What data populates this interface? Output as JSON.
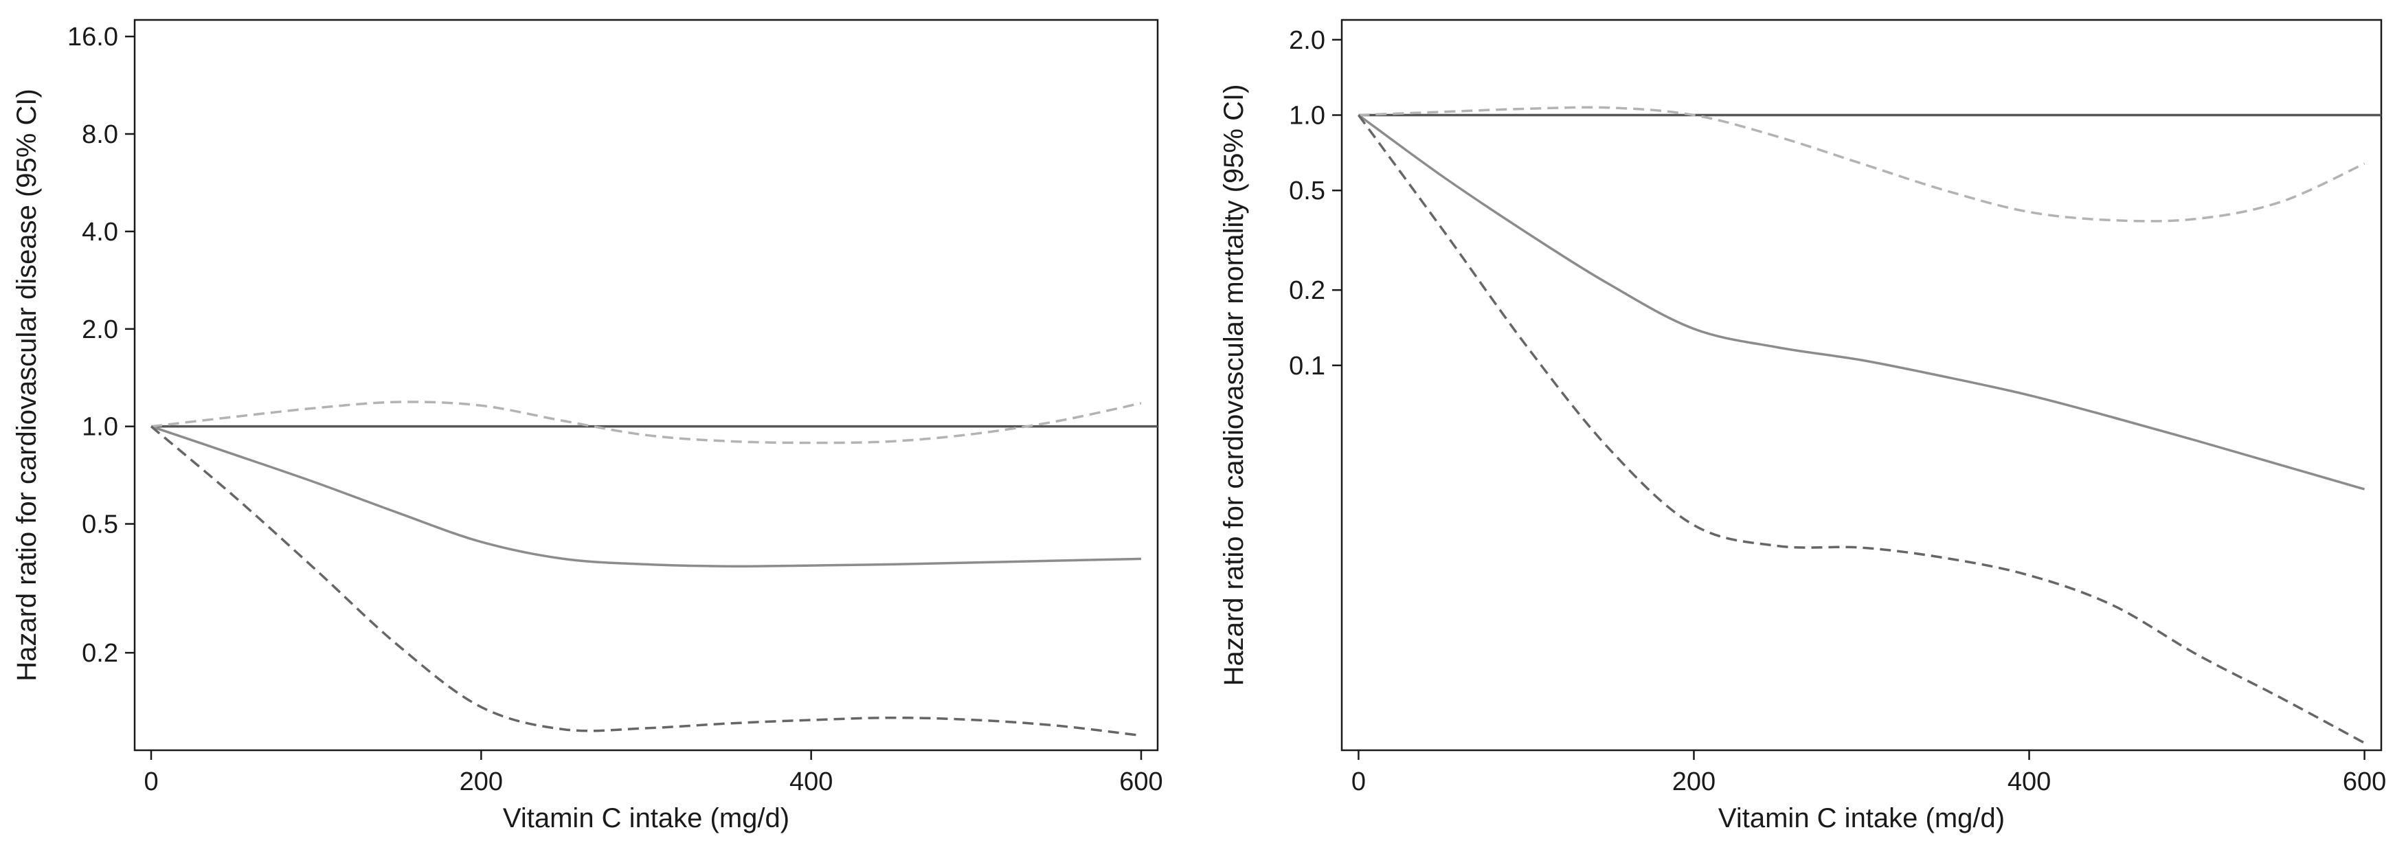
{
  "chart_data": [
    {
      "type": "line",
      "title": "",
      "xlabel": "Vitamin C intake (mg/d)",
      "ylabel": "Hazard ratio for cardiovascular disease (95% CI)",
      "y_scale": "log",
      "xlim": [
        -10,
        610
      ],
      "ylim": [
        0.1,
        18
      ],
      "x_ticks": [
        0,
        200,
        400,
        600
      ],
      "x_tick_labels": [
        "0",
        "200",
        "400",
        "600"
      ],
      "y_ticks": [
        0.2,
        0.5,
        1.0,
        2.0,
        4.0,
        8.0,
        16.0
      ],
      "y_tick_labels": [
        "0.2",
        "0.5",
        "1.0",
        "2.0",
        "4.0",
        "8.0",
        "16.0"
      ],
      "grid": false,
      "reference_line": {
        "y": 1.0,
        "color": "#555555",
        "style": "solid"
      },
      "series": [
        {
          "style": "solid",
          "color": "#8c8c8c",
          "x": [
            0,
            50,
            100,
            150,
            200,
            250,
            300,
            350,
            400,
            450,
            500,
            550,
            600
          ],
          "y": [
            1.0,
            0.82,
            0.67,
            0.54,
            0.44,
            0.39,
            0.375,
            0.37,
            0.372,
            0.375,
            0.38,
            0.385,
            0.39
          ]
        },
        {
          "style": "dashed",
          "color": "#b3b3b3",
          "x": [
            0,
            50,
            100,
            150,
            200,
            250,
            300,
            350,
            400,
            450,
            500,
            550,
            600
          ],
          "y": [
            1.0,
            1.07,
            1.14,
            1.19,
            1.16,
            1.04,
            0.94,
            0.9,
            0.89,
            0.9,
            0.95,
            1.04,
            1.18
          ]
        },
        {
          "style": "dashed",
          "color": "#666666",
          "x": [
            0,
            50,
            100,
            150,
            200,
            250,
            300,
            350,
            400,
            450,
            500,
            550,
            600
          ],
          "y": [
            1.0,
            0.61,
            0.36,
            0.21,
            0.136,
            0.116,
            0.117,
            0.121,
            0.124,
            0.126,
            0.124,
            0.119,
            0.111
          ]
        }
      ]
    },
    {
      "type": "line",
      "title": "",
      "xlabel": "Vitamin C intake (mg/d)",
      "ylabel": "Hazard ratio for cardiovascular mortality (95% CI)",
      "y_scale": "log",
      "xlim": [
        -10,
        610
      ],
      "ylim": [
        0.0029,
        2.4
      ],
      "x_ticks": [
        0,
        200,
        400,
        600
      ],
      "x_tick_labels": [
        "0",
        "200",
        "400",
        "600"
      ],
      "y_ticks": [
        0.1,
        0.2,
        0.5,
        1.0,
        2.0
      ],
      "y_tick_labels": [
        "0.1",
        "0.2",
        "0.5",
        "1.0",
        "2.0"
      ],
      "grid": false,
      "reference_line": {
        "y": 1.0,
        "color": "#555555",
        "style": "solid"
      },
      "series": [
        {
          "style": "solid",
          "color": "#8c8c8c",
          "x": [
            0,
            50,
            100,
            150,
            200,
            250,
            300,
            350,
            400,
            450,
            500,
            550,
            600
          ],
          "y": [
            1.0,
            0.57,
            0.34,
            0.21,
            0.14,
            0.118,
            0.105,
            0.09,
            0.076,
            0.062,
            0.05,
            0.04,
            0.032
          ]
        },
        {
          "style": "dashed",
          "color": "#b3b3b3",
          "x": [
            0,
            50,
            100,
            150,
            200,
            250,
            300,
            350,
            400,
            450,
            500,
            550,
            600
          ],
          "y": [
            1.0,
            1.03,
            1.06,
            1.07,
            1.0,
            0.82,
            0.64,
            0.5,
            0.41,
            0.38,
            0.385,
            0.45,
            0.64
          ]
        },
        {
          "style": "dashed",
          "color": "#666666",
          "x": [
            0,
            50,
            100,
            150,
            200,
            250,
            300,
            350,
            400,
            450,
            500,
            550,
            600
          ],
          "y": [
            1.0,
            0.35,
            0.12,
            0.046,
            0.023,
            0.019,
            0.0187,
            0.017,
            0.0145,
            0.011,
            0.007,
            0.0047,
            0.0031
          ]
        }
      ]
    }
  ]
}
